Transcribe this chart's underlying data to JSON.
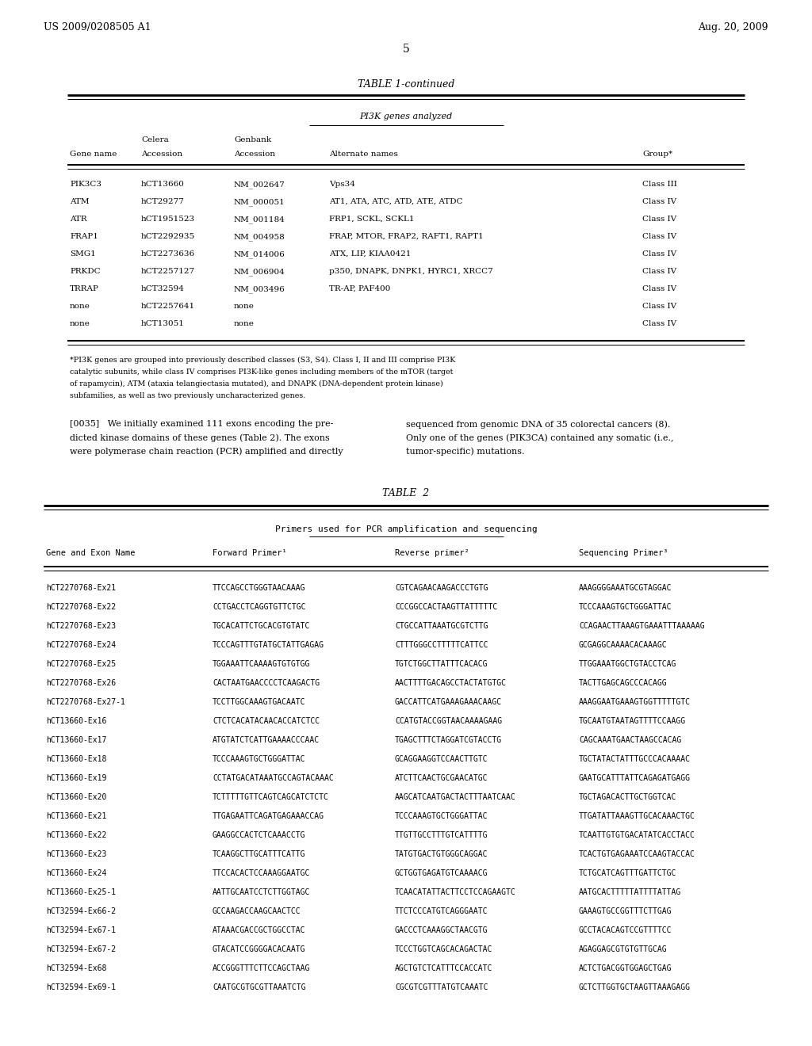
{
  "header_left": "US 2009/0208505 A1",
  "header_right": "Aug. 20, 2009",
  "page_number": "5",
  "table1_title": "TABLE 1-continued",
  "table1_subtitle": "PI3K genes analyzed",
  "table1_rows": [
    [
      "PIK3C3",
      "hCT13660",
      "NM_002647",
      "Vps34",
      "Class III"
    ],
    [
      "ATM",
      "hCT29277",
      "NM_000051",
      "AT1, ATA, ATC, ATD, ATE, ATDC",
      "Class IV"
    ],
    [
      "ATR",
      "hCT1951523",
      "NM_001184",
      "FRP1, SCKL, SCKL1",
      "Class IV"
    ],
    [
      "FRAP1",
      "hCT2292935",
      "NM_004958",
      "FRAP, MTOR, FRAP2, RAFT1, RAPT1",
      "Class IV"
    ],
    [
      "SMG1",
      "hCT2273636",
      "NM_014006",
      "ATX, LIP, KIAA0421",
      "Class IV"
    ],
    [
      "PRKDC",
      "hCT2257127",
      "NM_006904",
      "p350, DNAPK, DNPK1, HYRC1, XRCC7",
      "Class IV"
    ],
    [
      "TRRAP",
      "hCT32594",
      "NM_003496",
      "TR-AP, PAF400",
      "Class IV"
    ],
    [
      "none",
      "hCT2257641",
      "none",
      "",
      "Class IV"
    ],
    [
      "none",
      "hCT13051",
      "none",
      "",
      "Class IV"
    ]
  ],
  "table1_footnote": "*PI3K genes are grouped into previously described classes (S3, S4). Class I, II and III comprise PI3K\ncatalytic subunits, while class IV comprises PI3K-like genes including members of the mTOR (target\nof rapamycin), ATM (ataxia telangiectasia mutated), and DNAPK (DNA-dependent protein kinase)\nsubfamilies, as well as two previously uncharacterized genes.",
  "paragraph_text_left": "[0035]   We initially examined 111 exons encoding the pre-\ndicted kinase domains of these genes (Table 2). The exons\nwere polymerase chain reaction (PCR) amplified and directly",
  "paragraph_text_right": "sequenced from genomic DNA of 35 colorectal cancers (8).\nOnly one of the genes (PIK3CA) contained any somatic (i.e.,\ntumor-specific) mutations.",
  "table2_title": "TABLE  2",
  "table2_subtitle": "Primers used for PCR amplification and sequencing",
  "table2_rows": [
    [
      "hCT2270768-Ex21",
      "TTCCAGCCTGGGTAACAAAG",
      "CGTCAGAACAAGACCCTGTG",
      "AAAGGGGAAATGCGTAGGAC"
    ],
    [
      "hCT2270768-Ex22",
      "CCTGACCTCAGGTGTTCTGC",
      "CCCGGCCACTAAGTTATTTTTC",
      "TCCCAAAGTGCTGGGATTAC"
    ],
    [
      "hCT2270768-Ex23",
      "TGCACATTCTGCACGTGTATC",
      "CTGCCATTAAATGCGTCTTG",
      "CCAGAACTTAAAGTGAAATTTAAAAAG"
    ],
    [
      "hCT2270768-Ex24",
      "TCCCAGTTTGTATGCTATTGAGAG",
      "CTTTGGGCCTTTTTCATTCC",
      "GCGAGGCAAAACACAAAGC"
    ],
    [
      "hCT2270768-Ex25",
      "TGGAAATTCAAAAGTGTGTGG",
      "TGTCTGGCTTATTTCACACG",
      "TTGGAAATGGCTGTACCTCAG"
    ],
    [
      "hCT2270768-Ex26",
      "CACTAATGAACCCCTCAAGACTG",
      "AACTTTTGACAGCCTACTATGTGC",
      "TACTTGAGCAGCCCACAGG"
    ],
    [
      "hCT2270768-Ex27-1",
      "TCCTTGGCAAAGTGACAATC",
      "GACCATTCATGAAAGAAACAAGC",
      "AAAGGAATGAAAGTGGTTTTTGTC"
    ],
    [
      "hCT13660-Ex16",
      "CTCTCACATACAACACCATCTCC",
      "CCATGTACCGGTAACAAAAGAAG",
      "TGCAATGTAATAGTTTTCCAAGG"
    ],
    [
      "hCT13660-Ex17",
      "ATGTATCTCATTGAAAACCCAAC",
      "TGAGCTTTCTAGGATCGTACCTG",
      "CAGCAAATGAACTAAGCCACAG"
    ],
    [
      "hCT13660-Ex18",
      "TCCCAAAGTGCTGGGATTAC",
      "GCAGGAAGGTCCAACTTGTC",
      "TGCTATACTATTTGCCCACAAAAC"
    ],
    [
      "hCT13660-Ex19",
      "CCTATGACATAAATGCCAGTACAAAC",
      "ATCTTCAACTGCGAACATGC",
      "GAATGCATTTATTCAGAGATGAGG"
    ],
    [
      "hCT13660-Ex20",
      "TCTTTTTGTTCAGTCAGCATCTCTC",
      "AAGCATCAATGACTACTTTAATCAAC",
      "TGCTAGACACTTGCTGGTCAC"
    ],
    [
      "hCT13660-Ex21",
      "TTGAGAATTCAGATGAGAAACCAG",
      "TCCCAAAGTGCTGGGATTAC",
      "TTGATATTAAAGTTGCACAAACTGC"
    ],
    [
      "hCT13660-Ex22",
      "GAAGGCCACTCTCAAACCTG",
      "TTGTTGCCTTTGTCATTTTG",
      "TCAATTGTGTGACATATCACCTACC"
    ],
    [
      "hCT13660-Ex23",
      "TCAAGGCTTGCATTTCATTG",
      "TATGTGACTGTGGGCAGGAC",
      "TCACTGTGAGAAATCCAAGTACCAC"
    ],
    [
      "hCT13660-Ex24",
      "TTCCACACTCCAAAGGAATGC",
      "GCTGGTGAGATGTCAAAACG",
      "TCTGCATCAGTTTGATTCTGC"
    ],
    [
      "hCT13660-Ex25-1",
      "AATTGCAATCCTCTTGGTAGC",
      "TCAACATATTACTTCCTCCAGAAGTC",
      "AATGCACTTTTTATTTTATTAG"
    ],
    [
      "hCT32594-Ex66-2",
      "GCCAAGACCAAGCAACTCC",
      "TTCTCCCATGTCAGGGAATC",
      "GAAAGTGCCGGTTTCTTGAG"
    ],
    [
      "hCT32594-Ex67-1",
      "ATAAACGACCGCTGGCCTAC",
      "GACCCTCAAAGGCTAACGTG",
      "GCCTACACAGTCCGTTTTCC"
    ],
    [
      "hCT32594-Ex67-2",
      "GTACATCCGGGGACACAATG",
      "TCCCTGGTCAGCACAGACTAC",
      "AGAGGAGCGTGTGTTGCAG"
    ],
    [
      "hCT32594-Ex68",
      "ACCGGGTTTCTTCCAGCTAAG",
      "AGCTGTCTCATTTCCACCATC",
      "ACTCTGACGGTGGAGCTGAG"
    ],
    [
      "hCT32594-Ex69-1",
      "CAATGCGTGCGTTAAATCTG",
      "CGCGTCGTTTATGTCAAATC",
      "GCTCTTGGTGCTAAGTTAAAGAGG"
    ]
  ]
}
